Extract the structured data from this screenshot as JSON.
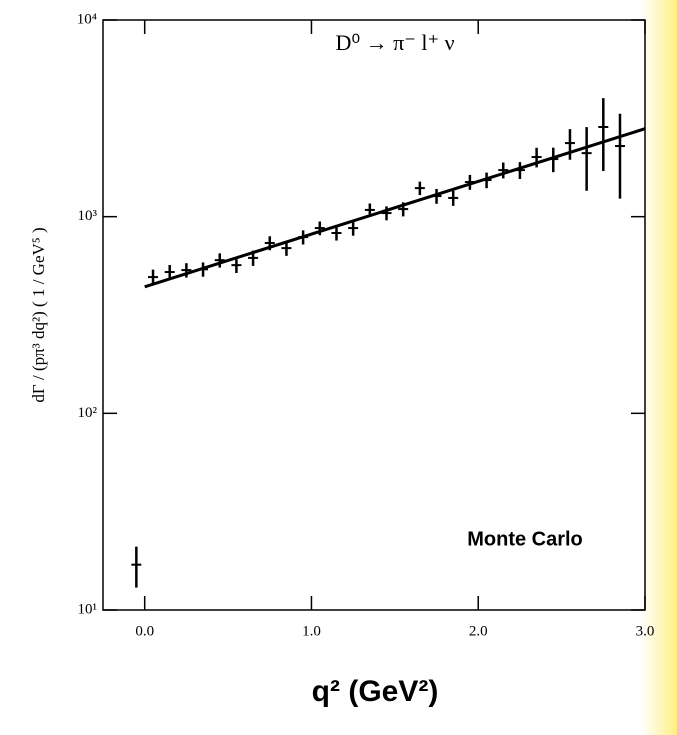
{
  "chart_data": {
    "type": "scatter",
    "annotation": "D⁰ → π⁻ l⁺ ν",
    "note": "Monte Carlo",
    "note_color": "#f06010",
    "x_label": "q² (GeV²)",
    "y_label": "dΓ / (pπ³ dq²) ( 1 / GeV⁵ )",
    "log_y": true,
    "color": "#000000",
    "x": [
      -0.05,
      0.05,
      0.15,
      0.25,
      0.35,
      0.45,
      0.55,
      0.65,
      0.75,
      0.85,
      0.95,
      1.05,
      1.15,
      1.25,
      1.35,
      1.45,
      1.55,
      1.65,
      1.75,
      1.85,
      1.95,
      2.05,
      2.15,
      2.25,
      2.35,
      2.45,
      2.55,
      2.65,
      2.75,
      2.85
    ],
    "values": [
      17,
      493,
      523,
      535,
      540,
      601,
      567,
      617,
      735,
      692,
      787,
      875,
      826,
      875,
      1082,
      1043,
      1093,
      1397,
      1273,
      1245,
      1500,
      1535,
      1725,
      1725,
      2010,
      1963,
      2367,
      2104,
      2857,
      2286
    ],
    "errors": [
      4,
      45,
      45,
      45,
      45,
      50,
      50,
      55,
      60,
      60,
      65,
      70,
      70,
      75,
      85,
      85,
      90,
      110,
      110,
      110,
      130,
      140,
      160,
      170,
      230,
      280,
      420,
      750,
      1150,
      1050
    ],
    "fit": {
      "x": [
        0.0,
        3.0
      ],
      "values": [
        440,
        2800
      ]
    },
    "xlim": [
      -0.25,
      3.0
    ],
    "ylim": [
      10,
      10000
    ],
    "xticks": [
      {
        "value": 0,
        "label": "0.0"
      },
      {
        "value": 1,
        "label": "1.0"
      },
      {
        "value": 2,
        "label": "2.0"
      },
      {
        "value": 3,
        "label": "3.0"
      }
    ],
    "yticks": [
      {
        "value": 10,
        "label": "10¹"
      },
      {
        "value": 100,
        "label": "10²"
      },
      {
        "value": 1000,
        "label": "10³"
      },
      {
        "value": 10000,
        "label": "10⁴"
      }
    ]
  }
}
